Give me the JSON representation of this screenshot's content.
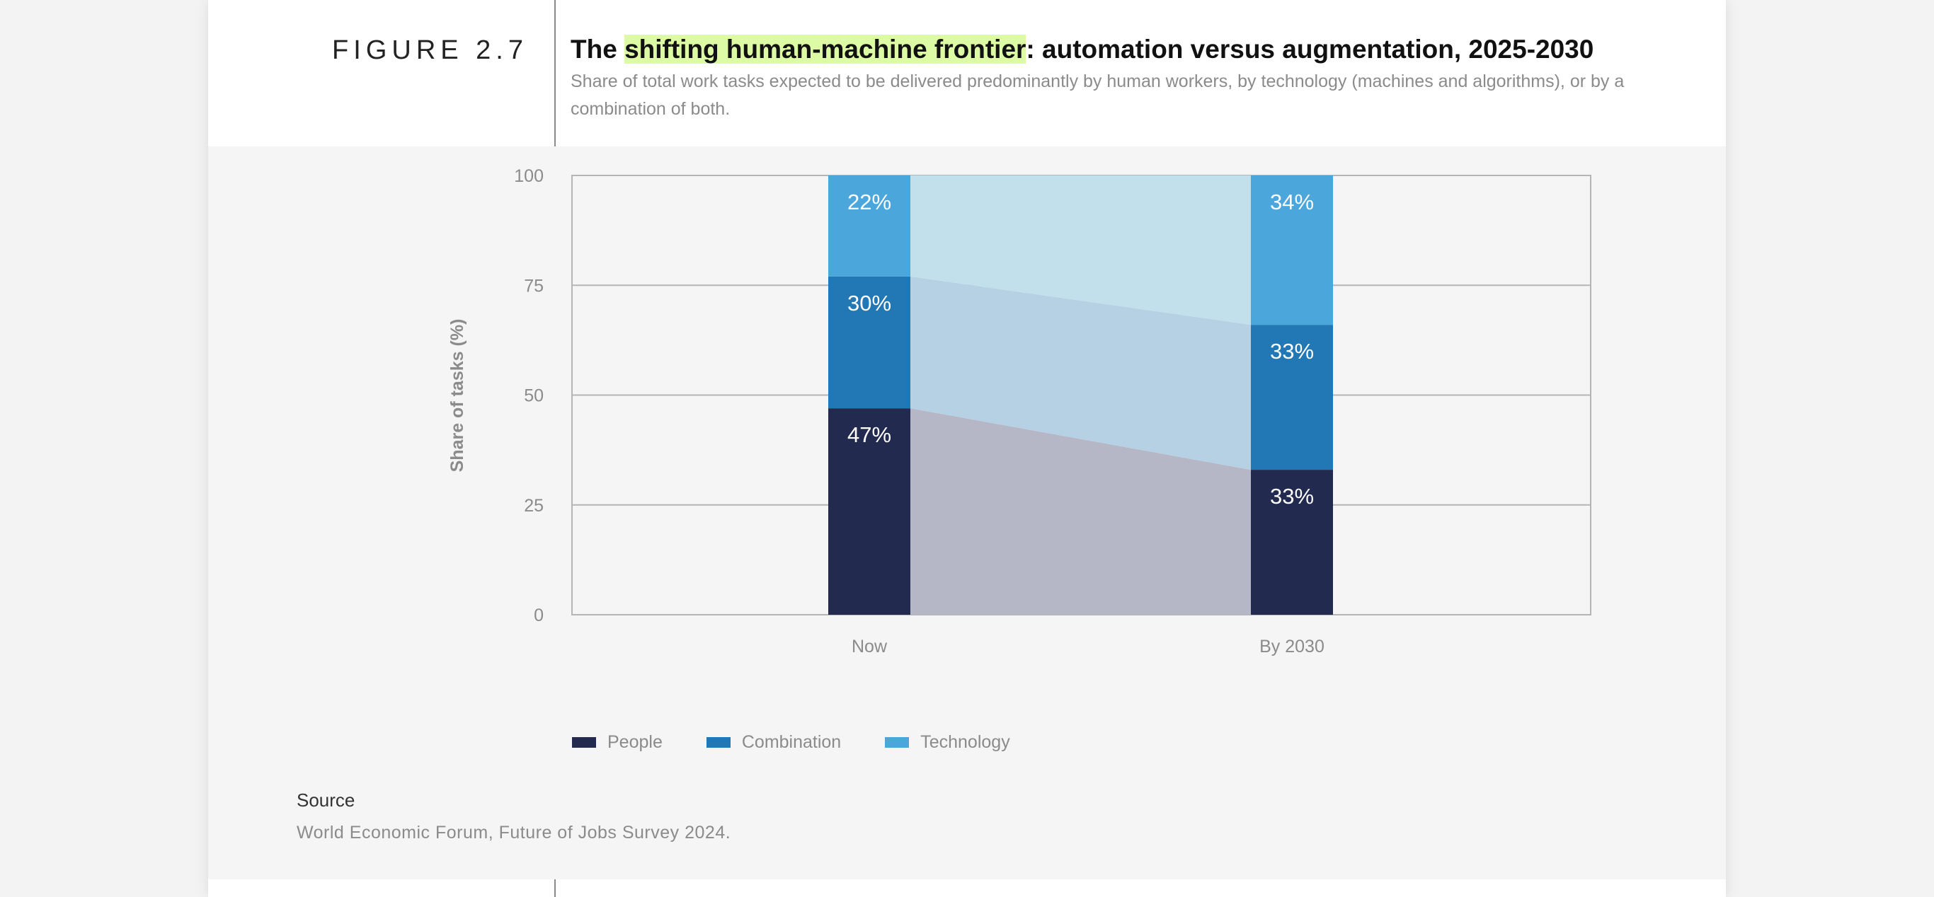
{
  "figure": {
    "label": "FIGURE 2.7",
    "title_before": "The ",
    "title_highlight": "shifting human-machine frontier",
    "title_after": ": automation versus augmentation, 2025-2030",
    "subtitle": "Share of total work tasks expected to be delivered predominantly by human workers, by technology (machines and algorithms), or by a combination of both.",
    "highlight_color": "#ddfaa5"
  },
  "source": {
    "label": "Source",
    "text": "World Economic Forum, Future of Jobs Survey 2024."
  },
  "chart_data": {
    "type": "bar",
    "stacked": true,
    "categories": [
      "Now",
      "By 2030"
    ],
    "series": [
      {
        "name": "People",
        "values": [
          47,
          33
        ],
        "labels": [
          "47%",
          "33%"
        ],
        "color": "#222a4f"
      },
      {
        "name": "Combination",
        "values": [
          30,
          33
        ],
        "labels": [
          "30%",
          "33%"
        ],
        "color": "#2277b5"
      },
      {
        "name": "Technology",
        "values": [
          22,
          34
        ],
        "labels": [
          "22%",
          "34%"
        ],
        "color": "#4aa6db"
      }
    ],
    "title": "",
    "xlabel": "",
    "ylabel": "Share of tasks (%)",
    "ylim": [
      0,
      100
    ],
    "yticks": [
      "0",
      "25",
      "50",
      "75",
      "100"
    ],
    "grid": true,
    "legend_position": "bottom-left",
    "connector_areas": true,
    "connector_colors": [
      "#b5b7c6",
      "#b5d1e3",
      "#c2dfec"
    ]
  }
}
